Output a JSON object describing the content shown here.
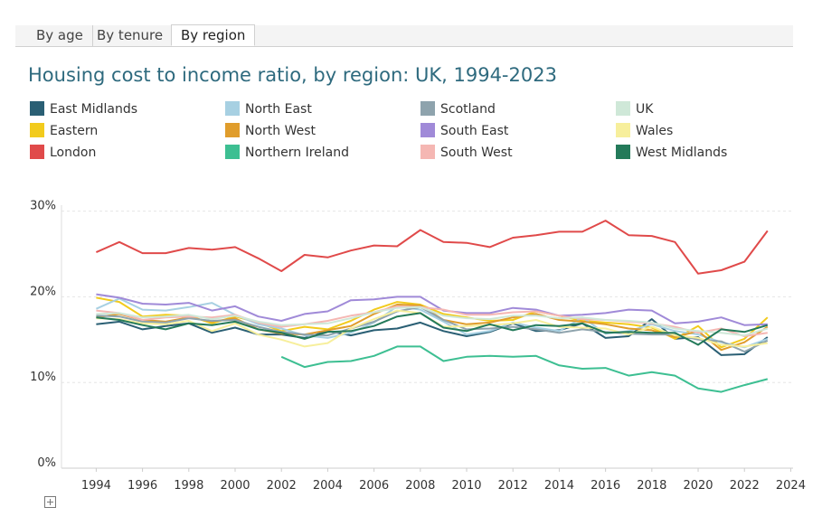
{
  "tabs": {
    "items": [
      "By age",
      "By tenure",
      "By region"
    ],
    "selected": 2
  },
  "chart_data": {
    "type": "line",
    "title": "Housing cost to income ratio, by region: UK, 1994-2023",
    "x": [
      1994,
      1995,
      1996,
      1997,
      1998,
      1999,
      2000,
      2001,
      2002,
      2003,
      2004,
      2005,
      2006,
      2007,
      2008,
      2009,
      2010,
      2011,
      2012,
      2013,
      2014,
      2015,
      2016,
      2017,
      2018,
      2019,
      2020,
      2021,
      2022,
      2023
    ],
    "xlim": [
      1992.5,
      2024.1
    ],
    "xticks": [
      1994,
      1996,
      1998,
      2000,
      2002,
      2004,
      2006,
      2008,
      2010,
      2012,
      2014,
      2016,
      2018,
      2020,
      2022,
      2024
    ],
    "ylim": [
      0,
      30.7
    ],
    "yticks": [
      {
        "value": 0,
        "label": "0%"
      },
      {
        "value": 10,
        "label": "10%"
      },
      {
        "value": 20,
        "label": "20%"
      },
      {
        "value": 30,
        "label": "30%"
      }
    ],
    "grid": true,
    "series": [
      {
        "name": "East Midlands",
        "color": "#2a5f74",
        "values": [
          16.8,
          17.1,
          16.2,
          16.6,
          16.9,
          15.8,
          16.4,
          15.6,
          15.6,
          15.2,
          16.0,
          15.5,
          16.1,
          16.3,
          17.0,
          16.0,
          15.4,
          15.9,
          16.9,
          16.0,
          16.1,
          16.9,
          15.2,
          15.4,
          17.4,
          15.1,
          15.3,
          13.2,
          13.3,
          15.3
        ]
      },
      {
        "name": "Eastern",
        "color": "#f2cb1d",
        "values": [
          19.9,
          19.4,
          17.7,
          17.9,
          17.8,
          16.9,
          17.7,
          17.0,
          16.0,
          16.5,
          16.2,
          17.2,
          18.5,
          19.4,
          19.1,
          18.0,
          17.6,
          17.2,
          17.3,
          18.3,
          17.8,
          17.2,
          17.0,
          16.8,
          16.4,
          15.1,
          16.6,
          14.1,
          15.1,
          17.6
        ]
      },
      {
        "name": "London",
        "color": "#e04a4a",
        "values": [
          25.2,
          26.4,
          25.1,
          25.1,
          25.7,
          25.5,
          25.8,
          24.5,
          23.0,
          24.9,
          24.6,
          25.4,
          26.0,
          25.9,
          27.8,
          26.4,
          26.3,
          25.8,
          26.9,
          27.2,
          27.6,
          27.6,
          28.9,
          27.2,
          27.1,
          26.4,
          22.7,
          23.1,
          24.1,
          27.7
        ]
      },
      {
        "name": "North East",
        "color": "#a7d0e2",
        "values": [
          18.6,
          19.8,
          18.5,
          18.4,
          18.8,
          19.3,
          17.9,
          16.8,
          16.3,
          15.5,
          15.2,
          15.8,
          17.0,
          18.9,
          18.5,
          17.1,
          15.6,
          16.0,
          17.0,
          16.4,
          16.0,
          17.6,
          15.7,
          16.0,
          16.8,
          16.0,
          15.6,
          14.7,
          14.1,
          15.1
        ]
      },
      {
        "name": "North West",
        "color": "#e09d2c",
        "values": [
          17.6,
          18.0,
          17.3,
          17.1,
          17.6,
          17.1,
          17.5,
          16.2,
          15.7,
          15.6,
          16.1,
          16.6,
          18.0,
          19.1,
          19.0,
          17.3,
          16.8,
          17.0,
          17.6,
          18.0,
          17.3,
          17.1,
          16.8,
          16.3,
          16.1,
          15.3,
          16.0,
          13.8,
          14.7,
          16.5
        ]
      },
      {
        "name": "Northern Ireland",
        "color": "#3dbf92",
        "values": [
          null,
          null,
          null,
          null,
          null,
          null,
          null,
          null,
          13.0,
          11.8,
          12.4,
          12.5,
          13.1,
          14.2,
          14.2,
          12.5,
          13.0,
          13.1,
          13.0,
          13.1,
          12.0,
          11.6,
          11.7,
          10.8,
          11.2,
          10.8,
          9.3,
          8.9,
          9.7,
          10.4
        ]
      },
      {
        "name": "Scotland",
        "color": "#8ea3ad",
        "values": [
          17.8,
          17.7,
          17.1,
          17.0,
          17.5,
          17.2,
          17.3,
          16.5,
          15.9,
          15.6,
          15.5,
          16.3,
          17.1,
          18.3,
          18.8,
          17.3,
          16.2,
          16.3,
          16.5,
          16.2,
          15.8,
          16.2,
          15.9,
          15.7,
          15.6,
          15.6,
          15.0,
          14.8,
          13.6,
          14.9
        ]
      },
      {
        "name": "South East",
        "color": "#a08ad8",
        "values": [
          20.3,
          19.9,
          19.2,
          19.1,
          19.3,
          18.4,
          18.9,
          17.7,
          17.2,
          18.0,
          18.3,
          19.6,
          19.7,
          20.0,
          20.0,
          18.4,
          18.1,
          18.1,
          18.7,
          18.5,
          17.8,
          17.9,
          18.1,
          18.5,
          18.4,
          16.9,
          17.1,
          17.6,
          16.7,
          16.8
        ]
      },
      {
        "name": "South West",
        "color": "#f5b7b3",
        "values": [
          18.4,
          18.1,
          17.3,
          17.6,
          17.7,
          17.6,
          17.9,
          17.0,
          16.5,
          16.8,
          17.2,
          17.8,
          18.2,
          18.9,
          18.8,
          18.5,
          17.9,
          17.9,
          18.2,
          18.3,
          17.8,
          17.4,
          17.3,
          17.1,
          16.9,
          16.5,
          15.8,
          16.3,
          15.4,
          15.8
        ]
      },
      {
        "name": "UK",
        "color": "#cfe8d8",
        "values": [
          18.0,
          18.1,
          17.6,
          17.7,
          17.9,
          17.4,
          17.8,
          17.1,
          16.7,
          16.8,
          16.9,
          17.5,
          18.2,
          18.7,
          18.8,
          17.8,
          17.5,
          17.4,
          17.8,
          17.8,
          17.5,
          17.6,
          17.3,
          17.2,
          17.0,
          16.3,
          16.0,
          15.8,
          15.5,
          16.3
        ]
      },
      {
        "name": "Wales",
        "color": "#f7ef9c",
        "values": [
          17.5,
          17.4,
          16.9,
          16.8,
          17.2,
          16.0,
          16.9,
          15.6,
          15.0,
          14.2,
          14.6,
          16.3,
          17.4,
          18.4,
          18.1,
          16.5,
          16.6,
          16.7,
          16.9,
          17.3,
          16.5,
          16.4,
          16.3,
          15.6,
          16.5,
          15.5,
          15.2,
          14.4,
          14.2,
          14.6
        ]
      },
      {
        "name": "West Midlands",
        "color": "#247a5a",
        "values": [
          17.6,
          17.3,
          16.7,
          16.2,
          16.9,
          16.7,
          17.1,
          16.2,
          15.8,
          15.1,
          15.9,
          16.0,
          16.6,
          17.7,
          18.1,
          16.4,
          16.0,
          16.8,
          16.1,
          16.7,
          16.6,
          16.9,
          15.8,
          15.9,
          15.8,
          15.8,
          14.4,
          16.2,
          15.9,
          16.7
        ]
      }
    ]
  }
}
